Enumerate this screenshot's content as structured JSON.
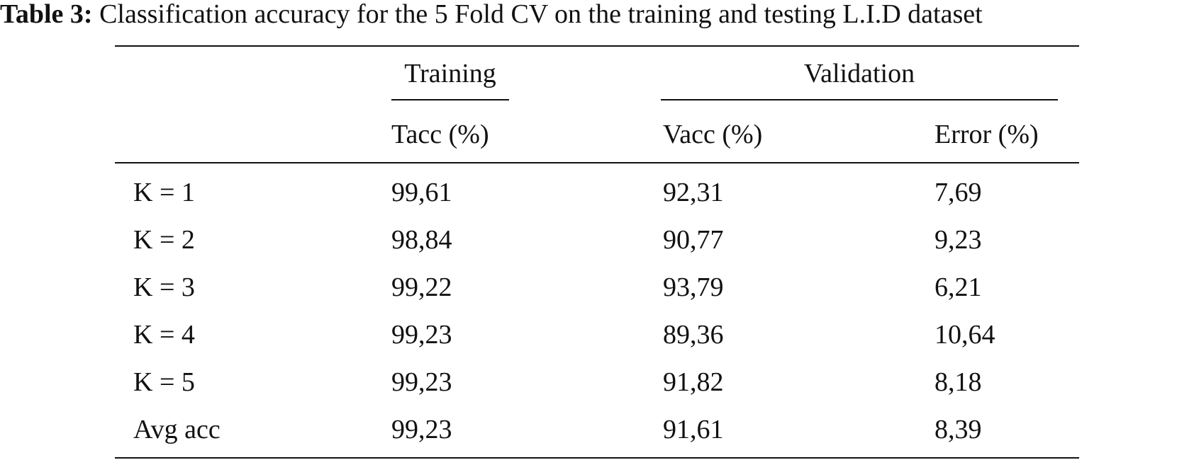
{
  "caption": {
    "label": "Table 3:",
    "text": "Classification accuracy for the 5 Fold CV on the training and testing L.I.D dataset"
  },
  "table": {
    "groups": {
      "training": "Training",
      "validation": "Validation"
    },
    "columns": [
      "",
      "Tacc (%)",
      "Vacc (%)",
      "Error (%)"
    ],
    "rows": [
      [
        "K = 1",
        "99,61",
        "92,31",
        "7,69"
      ],
      [
        "K = 2",
        "98,84",
        "90,77",
        "9,23"
      ],
      [
        "K = 3",
        "99,22",
        "93,79",
        "6,21"
      ],
      [
        "K = 4",
        "99,23",
        "89,36",
        "10,64"
      ],
      [
        "K = 5",
        "99,23",
        "91,82",
        "8,18"
      ],
      [
        "Avg acc",
        "99,23",
        "91,61",
        "8,39"
      ]
    ]
  }
}
